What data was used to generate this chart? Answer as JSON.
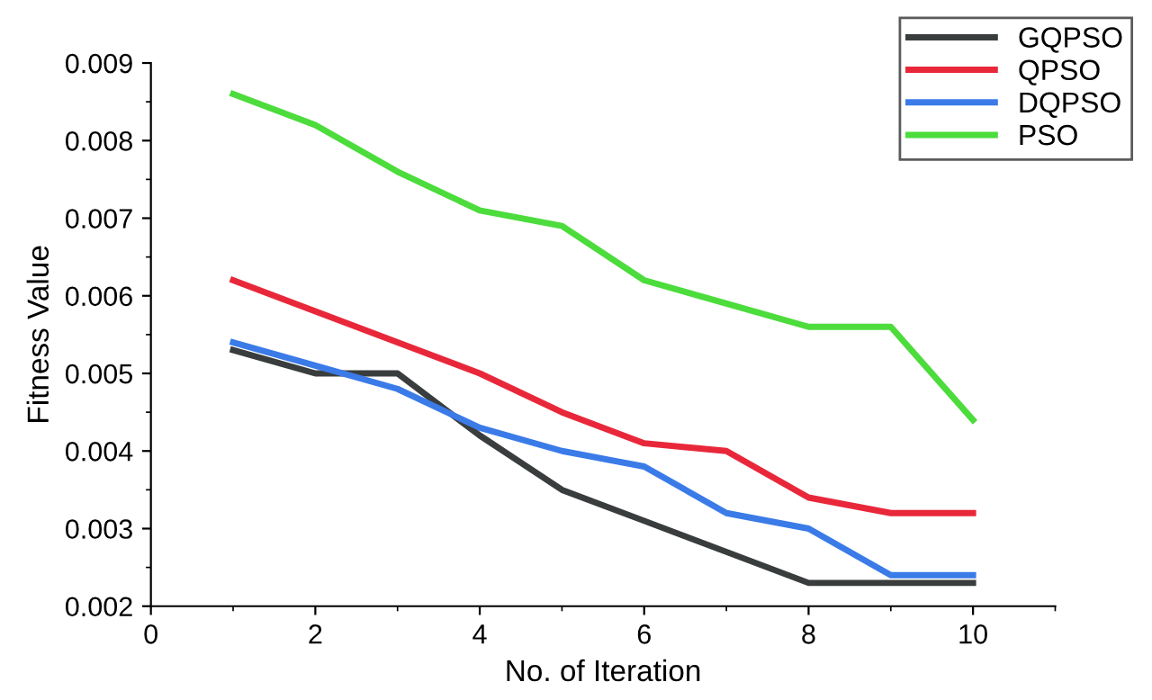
{
  "chart_data": {
    "type": "line",
    "xlabel": "No. of Iteration",
    "ylabel": "Fitness Value",
    "x": [
      1,
      2,
      3,
      4,
      5,
      6,
      7,
      8,
      9,
      10
    ],
    "series": [
      {
        "name": "GQPSO",
        "color": "#3a3d3d",
        "values": [
          0.0053,
          0.005,
          0.005,
          0.0042,
          0.0035,
          0.0031,
          0.0027,
          0.0023,
          0.0023,
          0.0023
        ]
      },
      {
        "name": "QPSO",
        "color": "#e8283a",
        "values": [
          0.0062,
          0.0058,
          0.0054,
          0.005,
          0.0045,
          0.0041,
          0.004,
          0.0034,
          0.0032,
          0.0032
        ]
      },
      {
        "name": "DQPSO",
        "color": "#3a7be8",
        "values": [
          0.0054,
          0.0051,
          0.0048,
          0.0043,
          0.004,
          0.0038,
          0.0032,
          0.003,
          0.0024,
          0.0024
        ]
      },
      {
        "name": "PSO",
        "color": "#4cdc3c",
        "values": [
          0.0086,
          0.0082,
          0.0076,
          0.0071,
          0.0069,
          0.0062,
          0.0059,
          0.0056,
          0.0056,
          0.0044
        ]
      }
    ],
    "xlim": [
      0,
      11
    ],
    "xticks": [
      0,
      2,
      4,
      6,
      8,
      10
    ],
    "ylim": [
      0.002,
      0.009
    ],
    "yticks": [
      0.002,
      0.003,
      0.004,
      0.005,
      0.006,
      0.007,
      0.008,
      0.009
    ],
    "grid": false,
    "legend": "top right",
    "marker": "none",
    "line_style": "solid"
  }
}
